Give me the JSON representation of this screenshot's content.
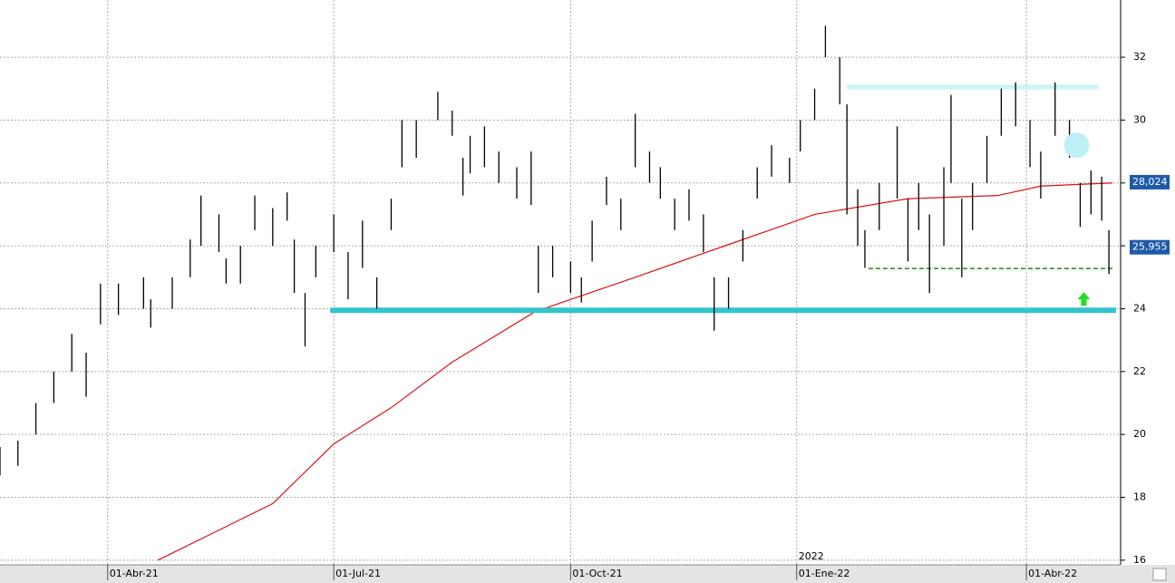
{
  "chart_data": {
    "type": "ohlc",
    "x": [
      -30,
      -25,
      -20,
      -15,
      -10,
      -6,
      -2,
      3,
      10,
      12,
      18,
      23,
      26,
      31,
      33,
      37,
      41,
      46,
      50,
      52,
      55,
      58,
      63,
      67,
      71,
      75,
      79,
      82,
      86,
      92,
      96,
      99,
      101,
      105,
      109,
      114,
      118,
      120,
      124,
      129,
      132,
      135,
      139,
      143,
      147,
      151,
      154,
      158,
      162,
      166,
      169,
      173,
      177,
      181,
      185,
      190,
      193,
      197,
      200,
      204,
      206,
      209,
      211,
      215,
      220,
      223,
      226,
      229,
      233,
      235,
      238,
      241,
      245,
      249,
      253,
      257,
      260,
      264,
      268,
      271,
      274,
      277,
      279
    ],
    "high": [
      19.6,
      19.8,
      21.0,
      22.0,
      23.2,
      22.6,
      24.8,
      24.8,
      25.0,
      24.3,
      25.0,
      26.2,
      27.6,
      27.0,
      25.6,
      26.0,
      27.6,
      27.2,
      27.7,
      26.2,
      24.5,
      26.0,
      27.0,
      25.8,
      26.8,
      25.0,
      27.5,
      30.0,
      30.0,
      30.9,
      30.3,
      28.8,
      29.5,
      29.8,
      29.0,
      28.5,
      29.0,
      26.0,
      26.0,
      25.5,
      25.0,
      26.8,
      28.2,
      27.5,
      30.2,
      29.0,
      28.5,
      27.5,
      27.8,
      27.0,
      25.0,
      25.0,
      26.5,
      28.5,
      29.2,
      28.8,
      30.0,
      31.0,
      33.0,
      32.0,
      30.5,
      27.8,
      26.5,
      28.0,
      29.8,
      27.5,
      28.0,
      27.0,
      28.5,
      30.8,
      27.5,
      28.0,
      29.5,
      31.0,
      31.2,
      30.0,
      29.0,
      31.2,
      30.0,
      28.0,
      28.4,
      28.2,
      26.5
    ],
    "low": [
      18.7,
      19.0,
      20.0,
      21.0,
      22.0,
      21.2,
      23.5,
      23.8,
      24.0,
      23.4,
      24.0,
      25.0,
      26.0,
      25.8,
      24.8,
      24.8,
      26.5,
      26.0,
      26.8,
      24.5,
      22.8,
      25.0,
      25.8,
      24.3,
      25.3,
      24.0,
      26.5,
      28.5,
      28.8,
      30.0,
      29.5,
      27.6,
      28.3,
      28.5,
      28.0,
      27.5,
      27.3,
      24.5,
      25.0,
      24.5,
      24.2,
      25.5,
      27.3,
      26.5,
      28.5,
      28.0,
      27.5,
      26.5,
      26.8,
      25.8,
      23.3,
      24.0,
      25.5,
      27.5,
      28.2,
      28.0,
      29.0,
      30.0,
      32.0,
      30.5,
      27.0,
      26.0,
      25.3,
      26.5,
      27.5,
      25.5,
      26.5,
      24.5,
      26.0,
      28.0,
      25.0,
      26.5,
      28.0,
      29.5,
      29.8,
      28.5,
      27.5,
      29.5,
      28.8,
      26.6,
      27.0,
      26.8,
      25.1
    ],
    "color": "#000000",
    "moving_average": {
      "color": "#dd1111",
      "x": [
        14,
        46,
        63,
        79,
        96,
        119,
        147,
        172,
        197,
        223,
        248,
        260,
        280
      ],
      "values": [
        16.0,
        17.8,
        19.7,
        20.85,
        22.3,
        23.9,
        25.0,
        26.0,
        27.0,
        27.5,
        27.6,
        27.9,
        28.0
      ]
    },
    "levels": [
      {
        "value": 23.95,
        "x": [
          62,
          281
        ],
        "color": "#33c4cc",
        "width": 6,
        "dash": false
      },
      {
        "value": 25.28,
        "x": [
          212,
          280
        ],
        "color": "#1a8a1a",
        "width": 1.5,
        "dash": true
      },
      {
        "value": 31.05,
        "x": [
          206,
          276
        ],
        "color": "#c8f4f8",
        "width": 5,
        "dash": false
      }
    ],
    "price_labels": [
      {
        "value": 28.024,
        "label": "28,024"
      },
      {
        "value": 25.955,
        "label": "25,955"
      }
    ],
    "markers": [
      {
        "x": 270,
        "value": 29.2,
        "kind": "circle",
        "color": "#bdf0f6"
      },
      {
        "x": 272,
        "value": 24.3,
        "kind": "arrow",
        "color": "#22dd22"
      }
    ],
    "ylim": [
      15.88,
      33.82
    ],
    "yticks": [
      16,
      18,
      20,
      22,
      24,
      26,
      28,
      30,
      32
    ],
    "xlim": [
      -30,
      282
    ],
    "xticks": [
      {
        "value": 0,
        "label": "01-Abr-21"
      },
      {
        "value": 63,
        "label": "01-Jul-21"
      },
      {
        "value": 129,
        "label": "01-Oct-21"
      },
      {
        "value": 192,
        "label": "01-Ene-22"
      },
      {
        "value": 256,
        "label": "01-Abr-22"
      }
    ],
    "year_labels": [
      {
        "value": 192,
        "label": "2022"
      }
    ],
    "grid": true
  }
}
